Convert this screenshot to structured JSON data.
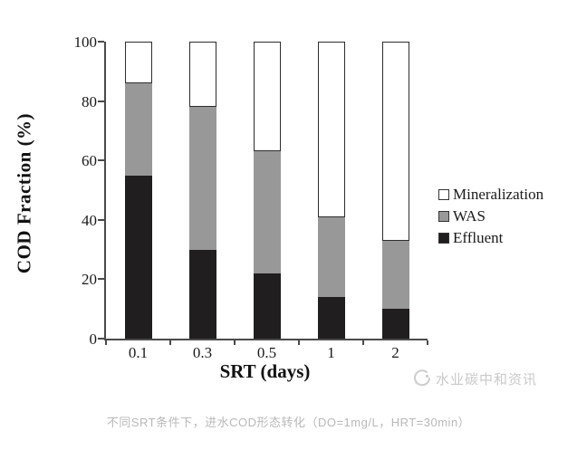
{
  "page": {
    "caption": "不同SRT条件下，进水COD形态转化（DO=1mg/L，HRT=30min）",
    "watermark": {
      "text": "水业碳中和资讯",
      "icon": "water-logo-icon"
    }
  },
  "chart_data": {
    "type": "bar",
    "stacked": true,
    "title": "",
    "xlabel": "SRT (days)",
    "ylabel": "COD Fraction (%)",
    "categories": [
      "0.1",
      "0.3",
      "0.5",
      "1",
      "2"
    ],
    "series": [
      {
        "name": "Effluent",
        "color": "#211e1f",
        "values": [
          55,
          30,
          22,
          14,
          10
        ]
      },
      {
        "name": "WAS",
        "color": "#989898",
        "values": [
          31,
          48,
          41,
          27,
          23
        ]
      },
      {
        "name": "Mineralization",
        "color": "#ffffff",
        "values": [
          14,
          22,
          37,
          59,
          67
        ]
      }
    ],
    "ylim": [
      0,
      100
    ],
    "yticks": [
      0,
      20,
      40,
      60,
      80,
      100
    ],
    "legend": [
      "Mineralization",
      "WAS",
      "Effluent"
    ],
    "legend_position": "right",
    "grid": false,
    "colors": {
      "axis": "#4a4a4a",
      "bar_outline": "#2d2d2d",
      "text": "#1a1a1a"
    }
  }
}
